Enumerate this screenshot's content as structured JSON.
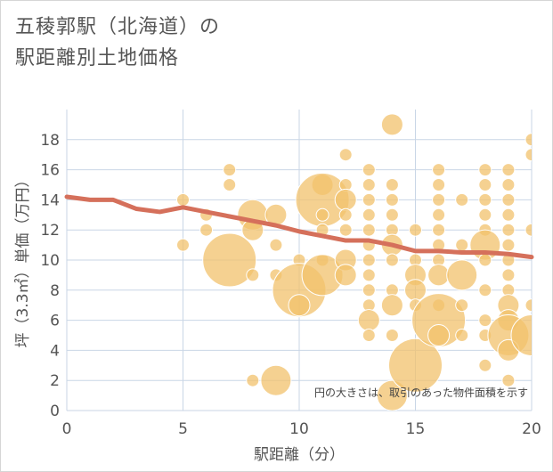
{
  "page": {
    "title": "五稜郭駅（北海道）の\n駅距離別土地価格"
  },
  "chart_data": {
    "type": "scatter",
    "title": "五稜郭駅（北海道）の駅距離別土地価格",
    "xlabel": "駅距離（分）",
    "ylabel": "坪（3.3㎡）単価（万円）",
    "note": "円の大きさは、取引のあった物件面積を示す",
    "xlim": [
      0,
      20
    ],
    "ylim": [
      0,
      20
    ],
    "x_ticks": [
      0,
      5,
      10,
      15,
      20
    ],
    "y_ticks": [
      0,
      2,
      4,
      6,
      8,
      10,
      12,
      14,
      16,
      18
    ],
    "grid": true,
    "colors": {
      "bubble": "#f2c16c",
      "bubble_stroke": "#ffffff",
      "trend": "#d5705b",
      "grid": "#c9d6e6"
    },
    "series": [
      {
        "kind": "bubble",
        "points": [
          {
            "x": 5,
            "y": 14,
            "s": 1
          },
          {
            "x": 5,
            "y": 11,
            "s": 1
          },
          {
            "x": 6,
            "y": 13,
            "s": 1
          },
          {
            "x": 6,
            "y": 12,
            "s": 1
          },
          {
            "x": 7,
            "y": 16,
            "s": 1
          },
          {
            "x": 7,
            "y": 15,
            "s": 1
          },
          {
            "x": 7,
            "y": 10,
            "s": 5
          },
          {
            "x": 8,
            "y": 13,
            "s": 3
          },
          {
            "x": 8,
            "y": 12,
            "s": 2
          },
          {
            "x": 8,
            "y": 9,
            "s": 1
          },
          {
            "x": 8,
            "y": 2,
            "s": 1
          },
          {
            "x": 9,
            "y": 13,
            "s": 2
          },
          {
            "x": 9,
            "y": 11,
            "s": 1
          },
          {
            "x": 9,
            "y": 9,
            "s": 1
          },
          {
            "x": 9,
            "y": 2,
            "s": 3
          },
          {
            "x": 10,
            "y": 10,
            "s": 1
          },
          {
            "x": 10,
            "y": 8,
            "s": 5
          },
          {
            "x": 10,
            "y": 7,
            "s": 2
          },
          {
            "x": 11,
            "y": 15,
            "s": 2
          },
          {
            "x": 11,
            "y": 14,
            "s": 5
          },
          {
            "x": 11,
            "y": 13,
            "s": 1
          },
          {
            "x": 11,
            "y": 12,
            "s": 1
          },
          {
            "x": 11,
            "y": 10,
            "s": 1
          },
          {
            "x": 11,
            "y": 9,
            "s": 4
          },
          {
            "x": 12,
            "y": 17,
            "s": 1
          },
          {
            "x": 12,
            "y": 15,
            "s": 1
          },
          {
            "x": 12,
            "y": 14,
            "s": 2
          },
          {
            "x": 12,
            "y": 13,
            "s": 1
          },
          {
            "x": 12,
            "y": 12,
            "s": 1
          },
          {
            "x": 12,
            "y": 10,
            "s": 2
          },
          {
            "x": 12,
            "y": 9,
            "s": 2
          },
          {
            "x": 13,
            "y": 16,
            "s": 1
          },
          {
            "x": 13,
            "y": 15,
            "s": 1
          },
          {
            "x": 13,
            "y": 14,
            "s": 1
          },
          {
            "x": 13,
            "y": 13,
            "s": 1
          },
          {
            "x": 13,
            "y": 12,
            "s": 1
          },
          {
            "x": 13,
            "y": 11,
            "s": 1
          },
          {
            "x": 13,
            "y": 10,
            "s": 1
          },
          {
            "x": 13,
            "y": 9,
            "s": 1
          },
          {
            "x": 13,
            "y": 8,
            "s": 1
          },
          {
            "x": 13,
            "y": 7,
            "s": 1
          },
          {
            "x": 13,
            "y": 6,
            "s": 2
          },
          {
            "x": 13,
            "y": 5,
            "s": 1
          },
          {
            "x": 14,
            "y": 19,
            "s": 2
          },
          {
            "x": 14,
            "y": 15,
            "s": 1
          },
          {
            "x": 14,
            "y": 14,
            "s": 1
          },
          {
            "x": 14,
            "y": 13,
            "s": 1
          },
          {
            "x": 14,
            "y": 12,
            "s": 1
          },
          {
            "x": 14,
            "y": 11,
            "s": 2
          },
          {
            "x": 14,
            "y": 10,
            "s": 1
          },
          {
            "x": 14,
            "y": 8,
            "s": 1
          },
          {
            "x": 14,
            "y": 7,
            "s": 2
          },
          {
            "x": 14,
            "y": 5,
            "s": 1
          },
          {
            "x": 14,
            "y": 1,
            "s": 3
          },
          {
            "x": 15,
            "y": 12,
            "s": 1
          },
          {
            "x": 15,
            "y": 10,
            "s": 1
          },
          {
            "x": 15,
            "y": 9,
            "s": 2
          },
          {
            "x": 15,
            "y": 8,
            "s": 2
          },
          {
            "x": 15,
            "y": 7,
            "s": 1
          },
          {
            "x": 15,
            "y": 3,
            "s": 5
          },
          {
            "x": 16,
            "y": 16,
            "s": 1
          },
          {
            "x": 16,
            "y": 15,
            "s": 1
          },
          {
            "x": 16,
            "y": 14,
            "s": 1
          },
          {
            "x": 16,
            "y": 13,
            "s": 1
          },
          {
            "x": 16,
            "y": 12,
            "s": 1
          },
          {
            "x": 16,
            "y": 11,
            "s": 1
          },
          {
            "x": 16,
            "y": 10,
            "s": 1
          },
          {
            "x": 16,
            "y": 9,
            "s": 2
          },
          {
            "x": 16,
            "y": 7,
            "s": 1
          },
          {
            "x": 16,
            "y": 6,
            "s": 5
          },
          {
            "x": 16,
            "y": 5,
            "s": 2
          },
          {
            "x": 17,
            "y": 14,
            "s": 1
          },
          {
            "x": 17,
            "y": 11,
            "s": 1
          },
          {
            "x": 17,
            "y": 9,
            "s": 3
          },
          {
            "x": 17,
            "y": 7,
            "s": 1
          },
          {
            "x": 17,
            "y": 5,
            "s": 1
          },
          {
            "x": 18,
            "y": 16,
            "s": 1
          },
          {
            "x": 18,
            "y": 15,
            "s": 1
          },
          {
            "x": 18,
            "y": 14,
            "s": 1
          },
          {
            "x": 18,
            "y": 13,
            "s": 1
          },
          {
            "x": 18,
            "y": 12,
            "s": 1
          },
          {
            "x": 18,
            "y": 11,
            "s": 3
          },
          {
            "x": 18,
            "y": 10,
            "s": 1
          },
          {
            "x": 18,
            "y": 8,
            "s": 1
          },
          {
            "x": 18,
            "y": 6,
            "s": 1
          },
          {
            "x": 18,
            "y": 5,
            "s": 1
          },
          {
            "x": 18,
            "y": 3,
            "s": 1
          },
          {
            "x": 19,
            "y": 16,
            "s": 1
          },
          {
            "x": 19,
            "y": 15,
            "s": 1
          },
          {
            "x": 19,
            "y": 14,
            "s": 1
          },
          {
            "x": 19,
            "y": 13,
            "s": 1
          },
          {
            "x": 19,
            "y": 12,
            "s": 1
          },
          {
            "x": 19,
            "y": 11,
            "s": 1
          },
          {
            "x": 19,
            "y": 10,
            "s": 1
          },
          {
            "x": 19,
            "y": 9,
            "s": 1
          },
          {
            "x": 19,
            "y": 8,
            "s": 1
          },
          {
            "x": 19,
            "y": 7,
            "s": 2
          },
          {
            "x": 19,
            "y": 6,
            "s": 2
          },
          {
            "x": 19,
            "y": 5,
            "s": 4
          },
          {
            "x": 19,
            "y": 4,
            "s": 2
          },
          {
            "x": 19,
            "y": 2,
            "s": 1
          },
          {
            "x": 20,
            "y": 18,
            "s": 1
          },
          {
            "x": 20,
            "y": 17,
            "s": 1
          },
          {
            "x": 20,
            "y": 12,
            "s": 1
          },
          {
            "x": 20,
            "y": 7,
            "s": 1
          },
          {
            "x": 20,
            "y": 5,
            "s": 4
          }
        ]
      },
      {
        "kind": "line",
        "x": [
          0,
          1,
          2,
          3,
          4,
          5,
          6,
          7,
          8,
          9,
          10,
          11,
          12,
          13,
          14,
          15,
          16,
          17,
          18,
          19,
          20
        ],
        "y": [
          14.2,
          14.0,
          14.0,
          13.4,
          13.2,
          13.5,
          13.2,
          12.9,
          12.6,
          12.3,
          11.9,
          11.6,
          11.3,
          11.3,
          11.0,
          10.6,
          10.6,
          10.5,
          10.5,
          10.4,
          10.2
        ]
      }
    ]
  }
}
